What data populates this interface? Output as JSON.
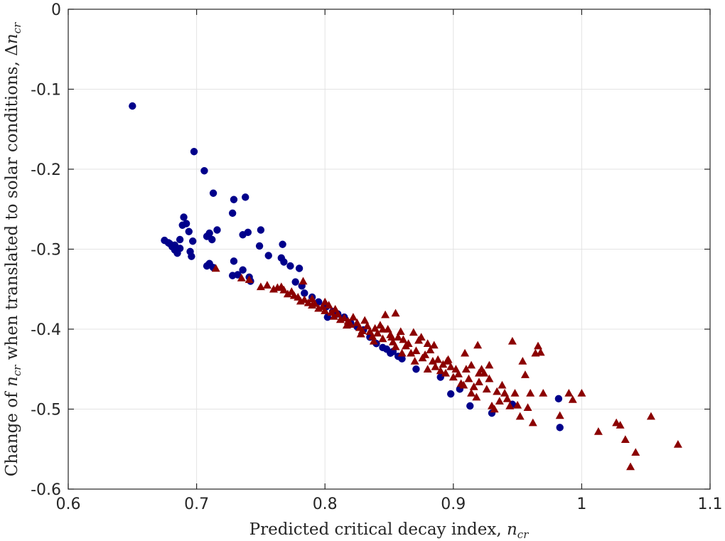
{
  "chart_data": {
    "type": "scatter",
    "title": "",
    "xlabel_prefix": "Predicted critical decay index, ",
    "xlabel_var": "n",
    "xlabel_sub": "cr",
    "ylabel_prefix": "Change of ",
    "ylabel_var": "n",
    "ylabel_sub": "cr",
    "ylabel_middle": " when translated to solar conditions, ",
    "ylabel_delta": "Δ",
    "xlim": [
      0.6,
      1.1
    ],
    "ylim": [
      -0.6,
      0
    ],
    "xticks": [
      0.6,
      0.7,
      0.8,
      0.9,
      1.0,
      1.1
    ],
    "xtick_labels": [
      "0.6",
      "0.7",
      "0.8",
      "0.9",
      "1",
      "1.1"
    ],
    "yticks": [
      0,
      -0.1,
      -0.2,
      -0.3,
      -0.4,
      -0.5,
      -0.6
    ],
    "ytick_labels": [
      "0",
      "-0.1",
      "-0.2",
      "-0.3",
      "-0.4",
      "-0.5",
      "-0.6"
    ],
    "grid": true,
    "series": [
      {
        "name": "circles",
        "marker": "circle",
        "color": "#00008B",
        "points": [
          [
            0.65,
            -0.121
          ],
          [
            0.698,
            -0.178
          ],
          [
            0.706,
            -0.202
          ],
          [
            0.713,
            -0.23
          ],
          [
            0.729,
            -0.238
          ],
          [
            0.738,
            -0.235
          ],
          [
            0.728,
            -0.255
          ],
          [
            0.675,
            -0.289
          ],
          [
            0.678,
            -0.292
          ],
          [
            0.681,
            -0.297
          ],
          [
            0.683,
            -0.301
          ],
          [
            0.685,
            -0.305
          ],
          [
            0.687,
            -0.299
          ],
          [
            0.687,
            -0.288
          ],
          [
            0.689,
            -0.27
          ],
          [
            0.69,
            -0.26
          ],
          [
            0.692,
            -0.268
          ],
          [
            0.694,
            -0.278
          ],
          [
            0.695,
            -0.303
          ],
          [
            0.696,
            -0.309
          ],
          [
            0.697,
            -0.29
          ],
          [
            0.683,
            -0.295
          ],
          [
            0.679,
            -0.293
          ],
          [
            0.708,
            -0.284
          ],
          [
            0.71,
            -0.28
          ],
          [
            0.712,
            -0.288
          ],
          [
            0.716,
            -0.276
          ],
          [
            0.708,
            -0.321
          ],
          [
            0.71,
            -0.318
          ],
          [
            0.713,
            -0.323
          ],
          [
            0.729,
            -0.315
          ],
          [
            0.728,
            -0.333
          ],
          [
            0.732,
            -0.332
          ],
          [
            0.736,
            -0.282
          ],
          [
            0.74,
            -0.279
          ],
          [
            0.75,
            -0.276
          ],
          [
            0.749,
            -0.296
          ],
          [
            0.756,
            -0.308
          ],
          [
            0.767,
            -0.294
          ],
          [
            0.766,
            -0.311
          ],
          [
            0.768,
            -0.316
          ],
          [
            0.773,
            -0.321
          ],
          [
            0.78,
            -0.324
          ],
          [
            0.736,
            -0.326
          ],
          [
            0.741,
            -0.335
          ],
          [
            0.742,
            -0.34
          ],
          [
            0.777,
            -0.341
          ],
          [
            0.782,
            -0.346
          ],
          [
            0.784,
            -0.355
          ],
          [
            0.79,
            -0.36
          ],
          [
            0.795,
            -0.366
          ],
          [
            0.801,
            -0.372
          ],
          [
            0.806,
            -0.378
          ],
          [
            0.81,
            -0.381
          ],
          [
            0.815,
            -0.385
          ],
          [
            0.802,
            -0.385
          ],
          [
            0.82,
            -0.392
          ],
          [
            0.825,
            -0.397
          ],
          [
            0.83,
            -0.401
          ],
          [
            0.835,
            -0.41
          ],
          [
            0.84,
            -0.418
          ],
          [
            0.845,
            -0.423
          ],
          [
            0.848,
            -0.425
          ],
          [
            0.851,
            -0.43
          ],
          [
            0.853,
            -0.428
          ],
          [
            0.857,
            -0.434
          ],
          [
            0.86,
            -0.437
          ],
          [
            0.871,
            -0.45
          ],
          [
            0.898,
            -0.481
          ],
          [
            0.905,
            -0.475
          ],
          [
            0.913,
            -0.496
          ],
          [
            0.93,
            -0.505
          ],
          [
            0.946,
            -0.494
          ],
          [
            0.982,
            -0.487
          ],
          [
            0.983,
            -0.523
          ],
          [
            0.89,
            -0.46
          ]
        ]
      },
      {
        "name": "triangles",
        "marker": "triangle",
        "color": "#8B0000",
        "points": [
          [
            0.715,
            -0.324
          ],
          [
            0.735,
            -0.336
          ],
          [
            0.741,
            -0.338
          ],
          [
            0.75,
            -0.347
          ],
          [
            0.755,
            -0.345
          ],
          [
            0.76,
            -0.35
          ],
          [
            0.763,
            -0.348
          ],
          [
            0.766,
            -0.347
          ],
          [
            0.768,
            -0.351
          ],
          [
            0.771,
            -0.356
          ],
          [
            0.774,
            -0.353
          ],
          [
            0.776,
            -0.358
          ],
          [
            0.779,
            -0.36
          ],
          [
            0.781,
            -0.365
          ],
          [
            0.783,
            -0.34
          ],
          [
            0.784,
            -0.363
          ],
          [
            0.787,
            -0.367
          ],
          [
            0.79,
            -0.37
          ],
          [
            0.792,
            -0.368
          ],
          [
            0.795,
            -0.374
          ],
          [
            0.798,
            -0.372
          ],
          [
            0.8,
            -0.377
          ],
          [
            0.803,
            -0.37
          ],
          [
            0.805,
            -0.379
          ],
          [
            0.807,
            -0.384
          ],
          [
            0.81,
            -0.381
          ],
          [
            0.812,
            -0.388
          ],
          [
            0.815,
            -0.386
          ],
          [
            0.818,
            -0.39
          ],
          [
            0.82,
            -0.394
          ],
          [
            0.822,
            -0.385
          ],
          [
            0.825,
            -0.392
          ],
          [
            0.827,
            -0.398
          ],
          [
            0.829,
            -0.402
          ],
          [
            0.831,
            -0.389
          ],
          [
            0.833,
            -0.396
          ],
          [
            0.835,
            -0.403
          ],
          [
            0.837,
            -0.409
          ],
          [
            0.839,
            -0.399
          ],
          [
            0.841,
            -0.405
          ],
          [
            0.843,
            -0.395
          ],
          [
            0.845,
            -0.412
          ],
          [
            0.847,
            -0.382
          ],
          [
            0.849,
            -0.4
          ],
          [
            0.851,
            -0.407
          ],
          [
            0.853,
            -0.416
          ],
          [
            0.855,
            -0.422
          ],
          [
            0.857,
            -0.41
          ],
          [
            0.859,
            -0.403
          ],
          [
            0.861,
            -0.413
          ],
          [
            0.863,
            -0.421
          ],
          [
            0.865,
            -0.418
          ],
          [
            0.867,
            -0.43
          ],
          [
            0.869,
            -0.404
          ],
          [
            0.871,
            -0.427
          ],
          [
            0.873,
            -0.414
          ],
          [
            0.876,
            -0.436
          ],
          [
            0.878,
            -0.432
          ],
          [
            0.88,
            -0.418
          ],
          [
            0.882,
            -0.426
          ],
          [
            0.884,
            -0.44
          ],
          [
            0.886,
            -0.447
          ],
          [
            0.888,
            -0.438
          ],
          [
            0.89,
            -0.452
          ],
          [
            0.892,
            -0.444
          ],
          [
            0.894,
            -0.455
          ],
          [
            0.896,
            -0.438
          ],
          [
            0.898,
            -0.447
          ],
          [
            0.9,
            -0.46
          ],
          [
            0.902,
            -0.45
          ],
          [
            0.904,
            -0.456
          ],
          [
            0.906,
            -0.468
          ],
          [
            0.908,
            -0.47
          ],
          [
            0.91,
            -0.45
          ],
          [
            0.912,
            -0.462
          ],
          [
            0.914,
            -0.48
          ],
          [
            0.916,
            -0.472
          ],
          [
            0.918,
            -0.485
          ],
          [
            0.92,
            -0.466
          ],
          [
            0.922,
            -0.45
          ],
          [
            0.924,
            -0.455
          ],
          [
            0.926,
            -0.475
          ],
          [
            0.928,
            -0.462
          ],
          [
            0.93,
            -0.496
          ],
          [
            0.932,
            -0.5
          ],
          [
            0.934,
            -0.478
          ],
          [
            0.936,
            -0.49
          ],
          [
            0.938,
            -0.47
          ],
          [
            0.94,
            -0.48
          ],
          [
            0.942,
            -0.487
          ],
          [
            0.944,
            -0.496
          ],
          [
            0.946,
            -0.415
          ],
          [
            0.948,
            -0.48
          ],
          [
            0.95,
            -0.495
          ],
          [
            0.952,
            -0.509
          ],
          [
            0.954,
            -0.44
          ],
          [
            0.956,
            -0.457
          ],
          [
            0.958,
            -0.498
          ],
          [
            0.96,
            -0.48
          ],
          [
            0.962,
            -0.517
          ],
          [
            0.964,
            -0.43
          ],
          [
            0.966,
            -0.421
          ],
          [
            0.968,
            -0.429
          ],
          [
            0.97,
            -0.48
          ],
          [
            0.983,
            -0.508
          ],
          [
            0.99,
            -0.48
          ],
          [
            0.993,
            -0.488
          ],
          [
            1.0,
            -0.48
          ],
          [
            1.013,
            -0.528
          ],
          [
            1.027,
            -0.517
          ],
          [
            1.03,
            -0.52
          ],
          [
            1.034,
            -0.538
          ],
          [
            1.038,
            -0.572
          ],
          [
            1.042,
            -0.554
          ],
          [
            1.054,
            -0.509
          ],
          [
            1.075,
            -0.544
          ],
          [
            0.855,
            -0.38
          ],
          [
            0.875,
            -0.41
          ],
          [
            0.885,
            -0.42
          ],
          [
            0.895,
            -0.44
          ],
          [
            0.909,
            -0.43
          ],
          [
            0.919,
            -0.42
          ],
          [
            0.914,
            -0.445
          ],
          [
            0.92,
            -0.455
          ],
          [
            0.928,
            -0.445
          ],
          [
            0.79,
            -0.362
          ],
          [
            0.8,
            -0.366
          ],
          [
            0.808,
            -0.375
          ],
          [
            0.845,
            -0.4
          ],
          [
            0.852,
            -0.41
          ],
          [
            0.86,
            -0.43
          ],
          [
            0.87,
            -0.44
          ],
          [
            0.88,
            -0.45
          ],
          [
            0.838,
            -0.415
          ],
          [
            0.828,
            -0.406
          ],
          [
            0.817,
            -0.395
          ]
        ]
      }
    ]
  }
}
